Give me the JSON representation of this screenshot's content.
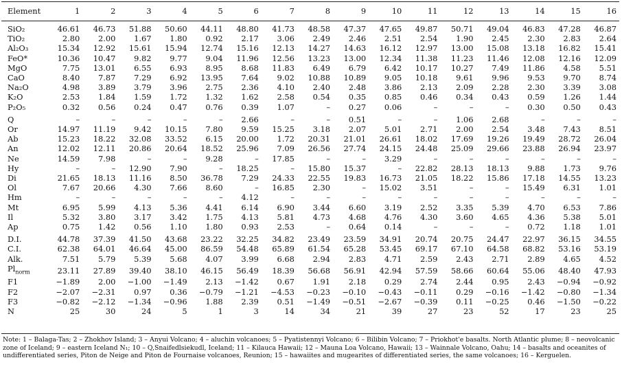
{
  "table": {
    "header_label": "Element",
    "columns": [
      "1",
      "2",
      "3",
      "4",
      "5",
      "6",
      "7",
      "8",
      "9",
      "10",
      "11",
      "12",
      "13",
      "14",
      "15",
      "16"
    ],
    "rows": [
      {
        "id": "sio2",
        "label": "SiO₂",
        "values": [
          "46.61",
          "46.73",
          "51.88",
          "50.60",
          "44.11",
          "48.80",
          "41.73",
          "48.58",
          "47.37",
          "47.65",
          "49.87",
          "50.71",
          "49.04",
          "46.83",
          "47.28",
          "46.87"
        ]
      },
      {
        "id": "tio2",
        "label": "TiO₂",
        "values": [
          "2.80",
          "2.00",
          "1.67",
          "1.80",
          "0.92",
          "2.17",
          "3.06",
          "2.49",
          "2.46",
          "2.51",
          "2.54",
          "1.90",
          "2.45",
          "2.30",
          "2.83",
          "2.64"
        ]
      },
      {
        "id": "al2o3",
        "label": "Al₂O₃",
        "values": [
          "15.34",
          "12.92",
          "15.61",
          "15.94",
          "12.74",
          "15.16",
          "12.13",
          "14.27",
          "14.63",
          "16.12",
          "12.97",
          "13.00",
          "15.08",
          "13.18",
          "16.82",
          "15.41"
        ]
      },
      {
        "id": "feo",
        "label": "FeO*",
        "values": [
          "10.36",
          "10.47",
          "9.82",
          "9.77",
          "9.04",
          "11.96",
          "12.56",
          "13.23",
          "13.00",
          "12.34",
          "11.38",
          "11.23",
          "11.46",
          "12.08",
          "12.16",
          "12.09"
        ]
      },
      {
        "id": "mgo",
        "label": "MgO",
        "values": [
          "7.75",
          "13.01",
          "6.55",
          "6.93",
          "8.95",
          "8.68",
          "11.83",
          "6.49",
          "6.79",
          "6.42",
          "10.17",
          "10.27",
          "7.49",
          "11.86",
          "4.58",
          "5.51"
        ]
      },
      {
        "id": "cao",
        "label": "CaO",
        "values": [
          "8.40",
          "7.87",
          "7.29",
          "6.92",
          "13.95",
          "7.64",
          "9.02",
          "10.88",
          "10.89",
          "9.05",
          "10.18",
          "9.61",
          "9.96",
          "9.53",
          "9.70",
          "8.74"
        ]
      },
      {
        "id": "na2o",
        "label": "Na₂O",
        "values": [
          "4.98",
          "3.89",
          "3.79",
          "3.96",
          "2.75",
          "2.36",
          "4.10",
          "2.40",
          "2.48",
          "3.86",
          "2.13",
          "2.09",
          "2.28",
          "2.30",
          "3.39",
          "3.08"
        ]
      },
      {
        "id": "k2o",
        "label": "K₂O",
        "values": [
          "2.53",
          "1.84",
          "1.59",
          "1.72",
          "1.32",
          "1.62",
          "2.58",
          "0.54",
          "0.35",
          "0.85",
          "0.46",
          "0.34",
          "0.43",
          "0.59",
          "1.26",
          "1.44"
        ]
      },
      {
        "id": "p2o5",
        "label": "P₂O₅",
        "values": [
          "0.32",
          "0.56",
          "0.24",
          "0.47",
          "0.76",
          "0.39",
          "1.07",
          "–",
          "0.27",
          "0.06",
          "–",
          "–",
          "–",
          "0.30",
          "0.50",
          "0.43"
        ]
      },
      {
        "id": "q",
        "label": "Q",
        "values": [
          "–",
          "–",
          "–",
          "–",
          "–",
          "2.66",
          "–",
          "–",
          "0.51",
          "–",
          "–",
          "1.06",
          "2.68",
          "–",
          "–",
          "–"
        ]
      },
      {
        "id": "or",
        "label": "Or",
        "values": [
          "14.97",
          "11.19",
          "9.42",
          "10.15",
          "7.80",
          "9.59",
          "15.25",
          "3.18",
          "2.07",
          "5.01",
          "2.71",
          "2.00",
          "2.54",
          "3.48",
          "7.43",
          "8.51"
        ]
      },
      {
        "id": "ab",
        "label": "Ab",
        "values": [
          "15.23",
          "18.22",
          "32.08",
          "33.52",
          "6.15",
          "20.00",
          "1.72",
          "20.31",
          "21.01",
          "26.61",
          "18.02",
          "17.69",
          "19.26",
          "19.49",
          "28.72",
          "26.04"
        ]
      },
      {
        "id": "an",
        "label": "An",
        "values": [
          "12.02",
          "12.11",
          "20.86",
          "20.64",
          "18.52",
          "25.96",
          "7.09",
          "26.56",
          "27.74",
          "24.15",
          "24.48",
          "25.09",
          "29.66",
          "23.88",
          "26.94",
          "23.97"
        ]
      },
      {
        "id": "ne",
        "label": "Ne",
        "values": [
          "14.59",
          "7.98",
          "–",
          "–",
          "9.28",
          "–",
          "17.85",
          "–",
          "–",
          "3.29",
          "–",
          "–",
          "–",
          "–",
          "–",
          "–"
        ]
      },
      {
        "id": "hy",
        "label": "Hy",
        "values": [
          "–",
          "–",
          "12.90",
          "7.90",
          "–",
          "18.25",
          "–",
          "15.80",
          "15.37",
          "–",
          "22.82",
          "28.13",
          "18.13",
          "9.88",
          "1.73",
          "9.76"
        ]
      },
      {
        "id": "di",
        "label": "Di",
        "values": [
          "21.65",
          "18.13",
          "11.16",
          "8.50",
          "36.78",
          "7.29",
          "24.33",
          "22.55",
          "19.83",
          "16.73",
          "21.05",
          "18.22",
          "15.86",
          "17.18",
          "14.55",
          "13.23"
        ]
      },
      {
        "id": "ol",
        "label": "Ol",
        "values": [
          "7.67",
          "20.66",
          "4.30",
          "7.66",
          "8.60",
          "–",
          "16.85",
          "2.30",
          "–",
          "15.02",
          "3.51",
          "–",
          "–",
          "15.49",
          "6.31",
          "1.01"
        ]
      },
      {
        "id": "hm",
        "label": "Hm",
        "values": [
          "–",
          "–",
          "–",
          "–",
          "–",
          "4.12",
          "–",
          "–",
          "–",
          "–",
          "–",
          "–",
          "–",
          "–",
          "–",
          "–"
        ]
      },
      {
        "id": "mt",
        "label": "Mt",
        "values": [
          "6.95",
          "5.99",
          "4.13",
          "5.36",
          "4.41",
          "6.14",
          "6.90",
          "3.44",
          "6.60",
          "3.19",
          "2.52",
          "3.35",
          "5.39",
          "4.70",
          "6.53",
          "7.86"
        ]
      },
      {
        "id": "il",
        "label": "Il",
        "values": [
          "5.32",
          "3.80",
          "3.17",
          "3.42",
          "1.75",
          "4.13",
          "5.81",
          "4.73",
          "4.68",
          "4.76",
          "4.30",
          "3.60",
          "4.65",
          "4.36",
          "5.38",
          "5.01"
        ]
      },
      {
        "id": "ap",
        "label": "Ap",
        "values": [
          "0.75",
          "1.42",
          "0.56",
          "1.10",
          "1.80",
          "0.93",
          "2.53",
          "–",
          "0.64",
          "0.14",
          "–",
          "–",
          "–",
          "0.72",
          "1.18",
          "1.01"
        ]
      },
      {
        "id": "di_index",
        "label": "D.I.",
        "values": [
          "44.78",
          "37.39",
          "41.50",
          "43.68",
          "23.22",
          "32.25",
          "34.82",
          "23.49",
          "23.59",
          "34.91",
          "20.74",
          "20.75",
          "24.47",
          "22.97",
          "36.15",
          "34.55"
        ]
      },
      {
        "id": "ci",
        "label": "C.I.",
        "values": [
          "62.38",
          "64.01",
          "46.64",
          "45.00",
          "86.59",
          "54.48",
          "65.89",
          "61.54",
          "65.28",
          "53.45",
          "69.17",
          "67.10",
          "64.58",
          "68.82",
          "53.16",
          "53.19"
        ]
      },
      {
        "id": "alk",
        "label": "Alk.",
        "values": [
          "7.51",
          "5.79",
          "5.39",
          "5.68",
          "4.07",
          "3.99",
          "6.68",
          "2.94",
          "2.83",
          "4.71",
          "2.59",
          "2.43",
          "2.71",
          "2.89",
          "4.65",
          "4.52"
        ]
      },
      {
        "id": "pl_norm",
        "label": "Pl",
        "label_sub": "norm",
        "values": [
          "23.11",
          "27.89",
          "39.40",
          "38.10",
          "46.15",
          "56.49",
          "18.39",
          "56.68",
          "56.91",
          "42.94",
          "57.59",
          "58.66",
          "60.64",
          "55.06",
          "48.40",
          "47.93"
        ]
      },
      {
        "id": "f1",
        "label": "F1",
        "values": [
          "−1.89",
          "2.00",
          "−1.00",
          "−1.49",
          "2.13",
          "−1.42",
          "0.67",
          "1.91",
          "2.18",
          "0.29",
          "2.74",
          "2.44",
          "0.95",
          "2.43",
          "−0.94",
          "−0.92"
        ]
      },
      {
        "id": "f2",
        "label": "F2",
        "values": [
          "−2.07",
          "−2.31",
          "0.97",
          "0.36",
          "−0.79",
          "−1.21",
          "−4.53",
          "−0.23",
          "−0.10",
          "−0.43",
          "−0.11",
          "0.29",
          "−0.16",
          "−1.42",
          "−0.80",
          "−1.34"
        ]
      },
      {
        "id": "f3",
        "label": "F3",
        "values": [
          "−0.82",
          "−2.12",
          "−1.34",
          "−0.96",
          "1.88",
          "2.39",
          "0.51",
          "−1.49",
          "−0.51",
          "−2.67",
          "−0.39",
          "0.11",
          "−0.25",
          "0.46",
          "−1.50",
          "−0.22"
        ]
      },
      {
        "id": "n",
        "label": "N",
        "values": [
          "25",
          "30",
          "24",
          "5",
          "1",
          "3",
          "14",
          "34",
          "21",
          "39",
          "27",
          "23",
          "52",
          "17",
          "23",
          "25"
        ]
      }
    ]
  },
  "note": "Note: 1 – Balaga-Tas; 2 – Zhokhov Island; 3 – Anyui Volcano; 4 – aluchin volcanoes; 5 – Pyatistennyi Volcano; 6 – Bilibin Volcano; 7 – Priokhot'e basalts. North Atlantic plume; 8 – neovolcanic zone of Iceland; 9 – eastern Iceland N₁; 10 – Q,Snaifedlsiekudl, Iceland; 11 – Kilauca Hawaii; 12 – Mauna Loa Volcano, Hawaii; 13 – Wainnale Volcano, Oahu; 14 – basalts and oceanites of undifferentiated series, Piton de Neige and Piton de Fournaise volcanoes, Reunion; 15 – hawaiites and mugearites of differentiated series, the same volcanoes; 16 – Kerguelen."
}
